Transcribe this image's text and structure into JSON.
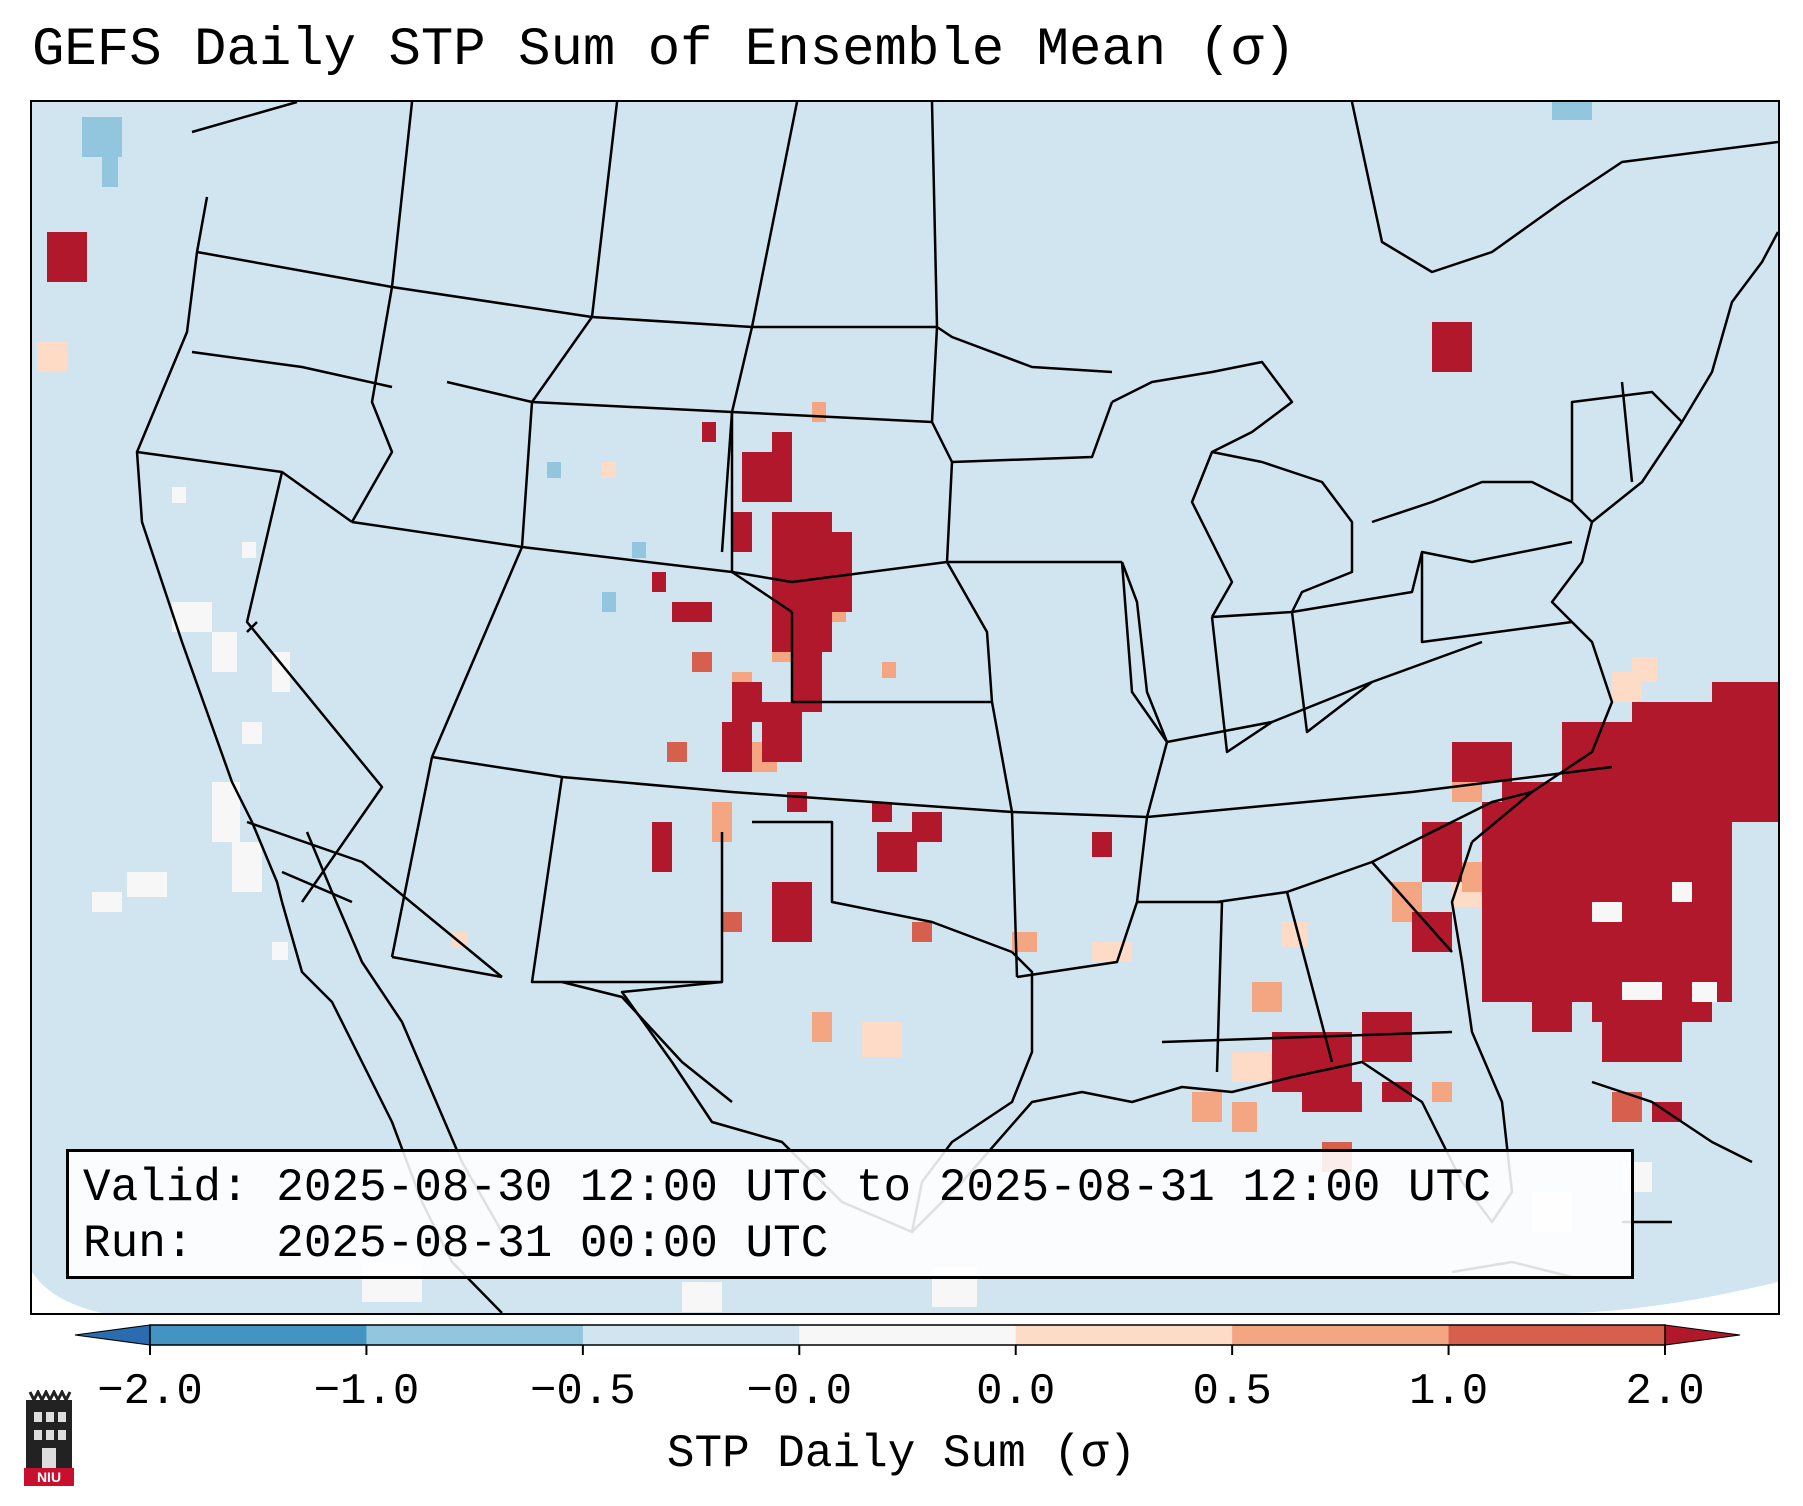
{
  "title": "GEFS Daily STP Sum of Ensemble Mean (σ)",
  "info": {
    "valid_line": "Valid: 2025-08-30 12:00 UTC to 2025-08-31 12:00 UTC",
    "run_line": "Run:   2025-08-31 00:00 UTC"
  },
  "colorbar": {
    "label": "STP Daily Sum (σ)",
    "ticks": [
      "-2.0",
      "-1.0",
      "-0.5",
      "-0.0",
      "0.0",
      "0.5",
      "1.0",
      "2.0"
    ],
    "under_color": "#2b6cb0",
    "over_color": "#b2182b",
    "bins": [
      {
        "from": "-2.0",
        "to": "-1.0",
        "color": "#4393c3"
      },
      {
        "from": "-1.0",
        "to": "-0.5",
        "color": "#92c5de"
      },
      {
        "from": "-0.5",
        "to": "-0.0",
        "color": "#d1e5f0"
      },
      {
        "from": "-0.0",
        "to": "0.0",
        "color": "#f7f7f7"
      },
      {
        "from": "0.0",
        "to": "0.5",
        "color": "#fddbc7"
      },
      {
        "from": "0.5",
        "to": "1.0",
        "color": "#f4a582"
      },
      {
        "from": "1.0",
        "to": "2.0",
        "color": "#d6604d"
      }
    ]
  },
  "map": {
    "background_color": "#d1e5f0",
    "border_color": "#000000"
  },
  "logo": {
    "text": "NIU",
    "color": "#c8102e"
  }
}
